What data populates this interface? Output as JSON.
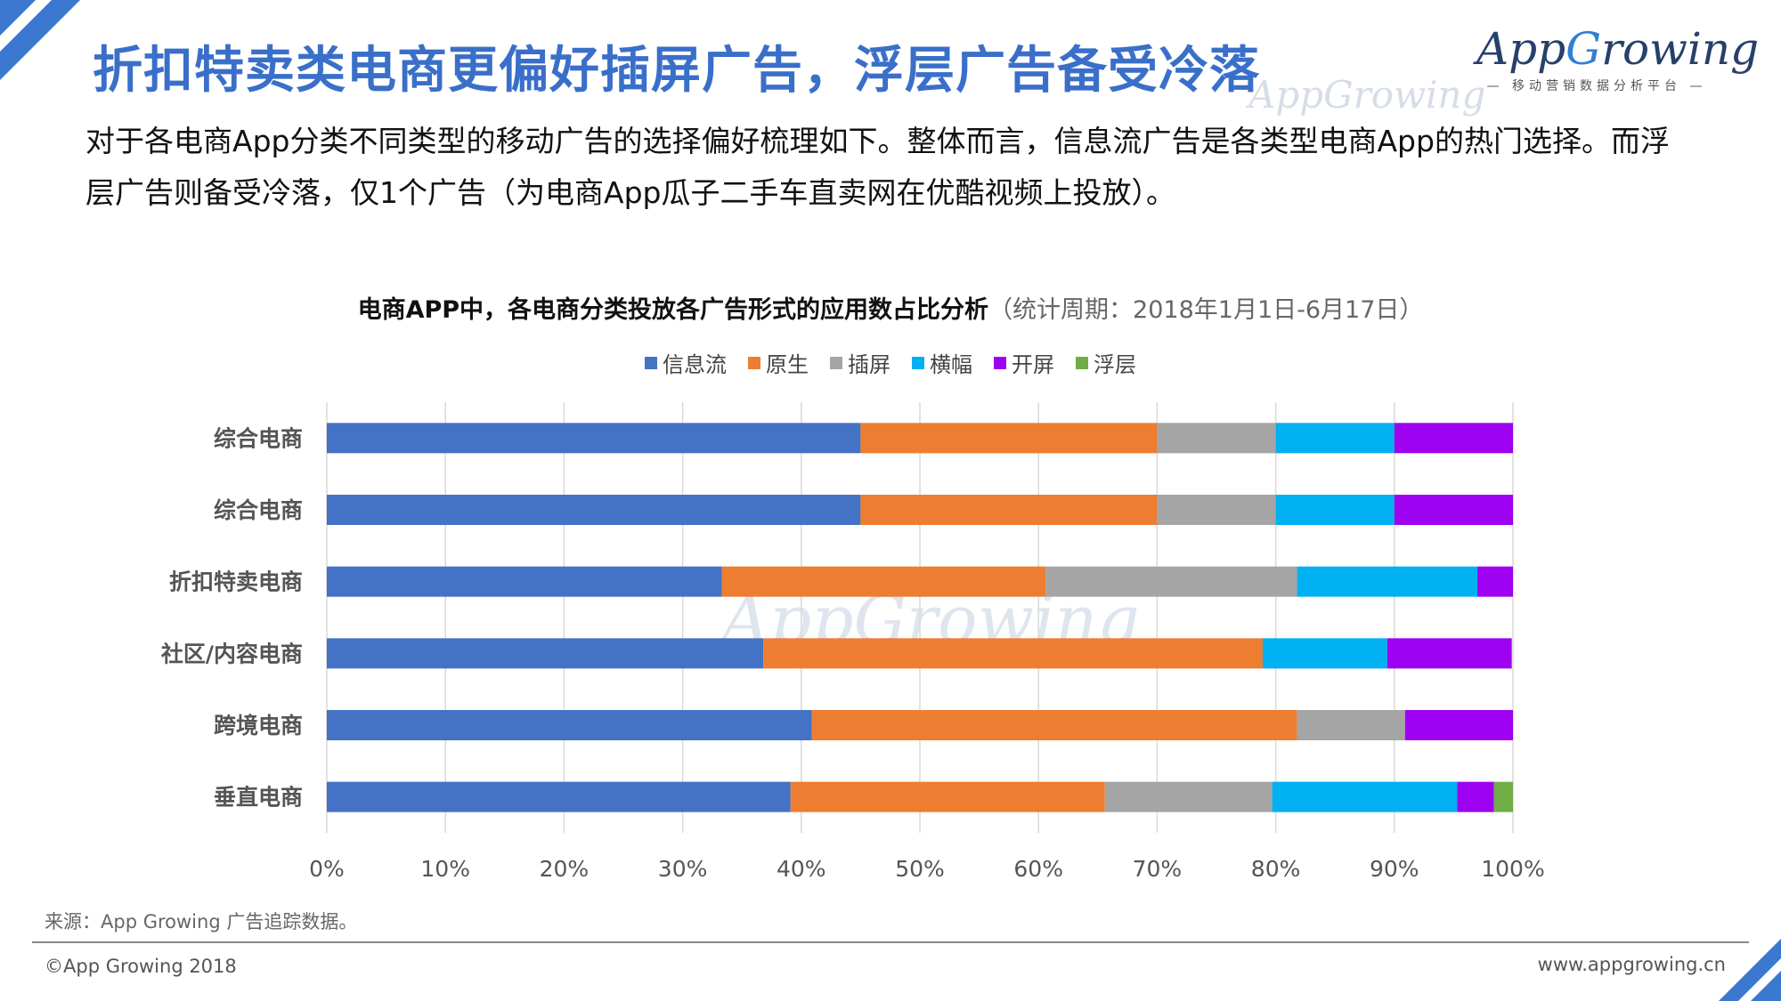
{
  "header": {
    "title": "折扣特卖类电商更偏好插屏广告，浮层广告备受冷落",
    "logo_text_a": "App",
    "logo_text_g": "G",
    "logo_text_b": "rowing",
    "logo_subtitle": "— 移动营销数据分析平台 —",
    "watermark": "AppGrowing"
  },
  "intro": "对于各电商App分类不同类型的移动广告的选择偏好梳理如下。整体而言，信息流广告是各类型电商App的热门选择。而浮层广告则备受冷落，仅1个广告（为电商App瓜子二手车直卖网在优酷视频上投放）。",
  "chart_data": {
    "type": "bar",
    "orientation": "horizontal",
    "stacked": true,
    "title": "电商APP中，各电商分类投放各广告形式的应用数占比分析",
    "subtitle": "（统计周期：2018年1月1日-6月17日）",
    "categories": [
      "综合电商",
      "综合电商",
      "折扣特卖电商",
      "社区/内容电商",
      "跨境电商",
      "垂直电商"
    ],
    "series": [
      {
        "name": "信息流",
        "color": "#4472c4",
        "values": [
          45,
          45,
          33.3,
          36.8,
          40.9,
          39.1
        ]
      },
      {
        "name": "原生",
        "color": "#ed7d31",
        "values": [
          25,
          25,
          27.3,
          42.1,
          40.9,
          26.5
        ]
      },
      {
        "name": "插屏",
        "color": "#a5a5a5",
        "values": [
          10,
          10,
          21.2,
          0,
          9.1,
          14.1
        ]
      },
      {
        "name": "横幅",
        "color": "#00b0f0",
        "values": [
          10,
          10,
          15.2,
          10.5,
          0,
          15.6
        ]
      },
      {
        "name": "开屏",
        "color": "#9e00f0",
        "values": [
          10,
          10,
          3.0,
          10.5,
          9.1,
          3.1
        ]
      },
      {
        "name": "浮层",
        "color": "#70ad47",
        "values": [
          0,
          0,
          0,
          0,
          0,
          1.6
        ]
      }
    ],
    "xlim": [
      0,
      100
    ],
    "xticks": [
      "0%",
      "10%",
      "20%",
      "30%",
      "40%",
      "50%",
      "60%",
      "70%",
      "80%",
      "90%",
      "100%"
    ],
    "grid": true,
    "legend_position": "top",
    "watermark": "AppGrowing"
  },
  "footer": {
    "source": "来源：App Growing 广告追踪数据。",
    "copyright": "©App Growing 2018",
    "website": "www.appgrowing.cn"
  },
  "colors": {
    "title": "#3a6fc9",
    "corner": "#3b78d0"
  }
}
